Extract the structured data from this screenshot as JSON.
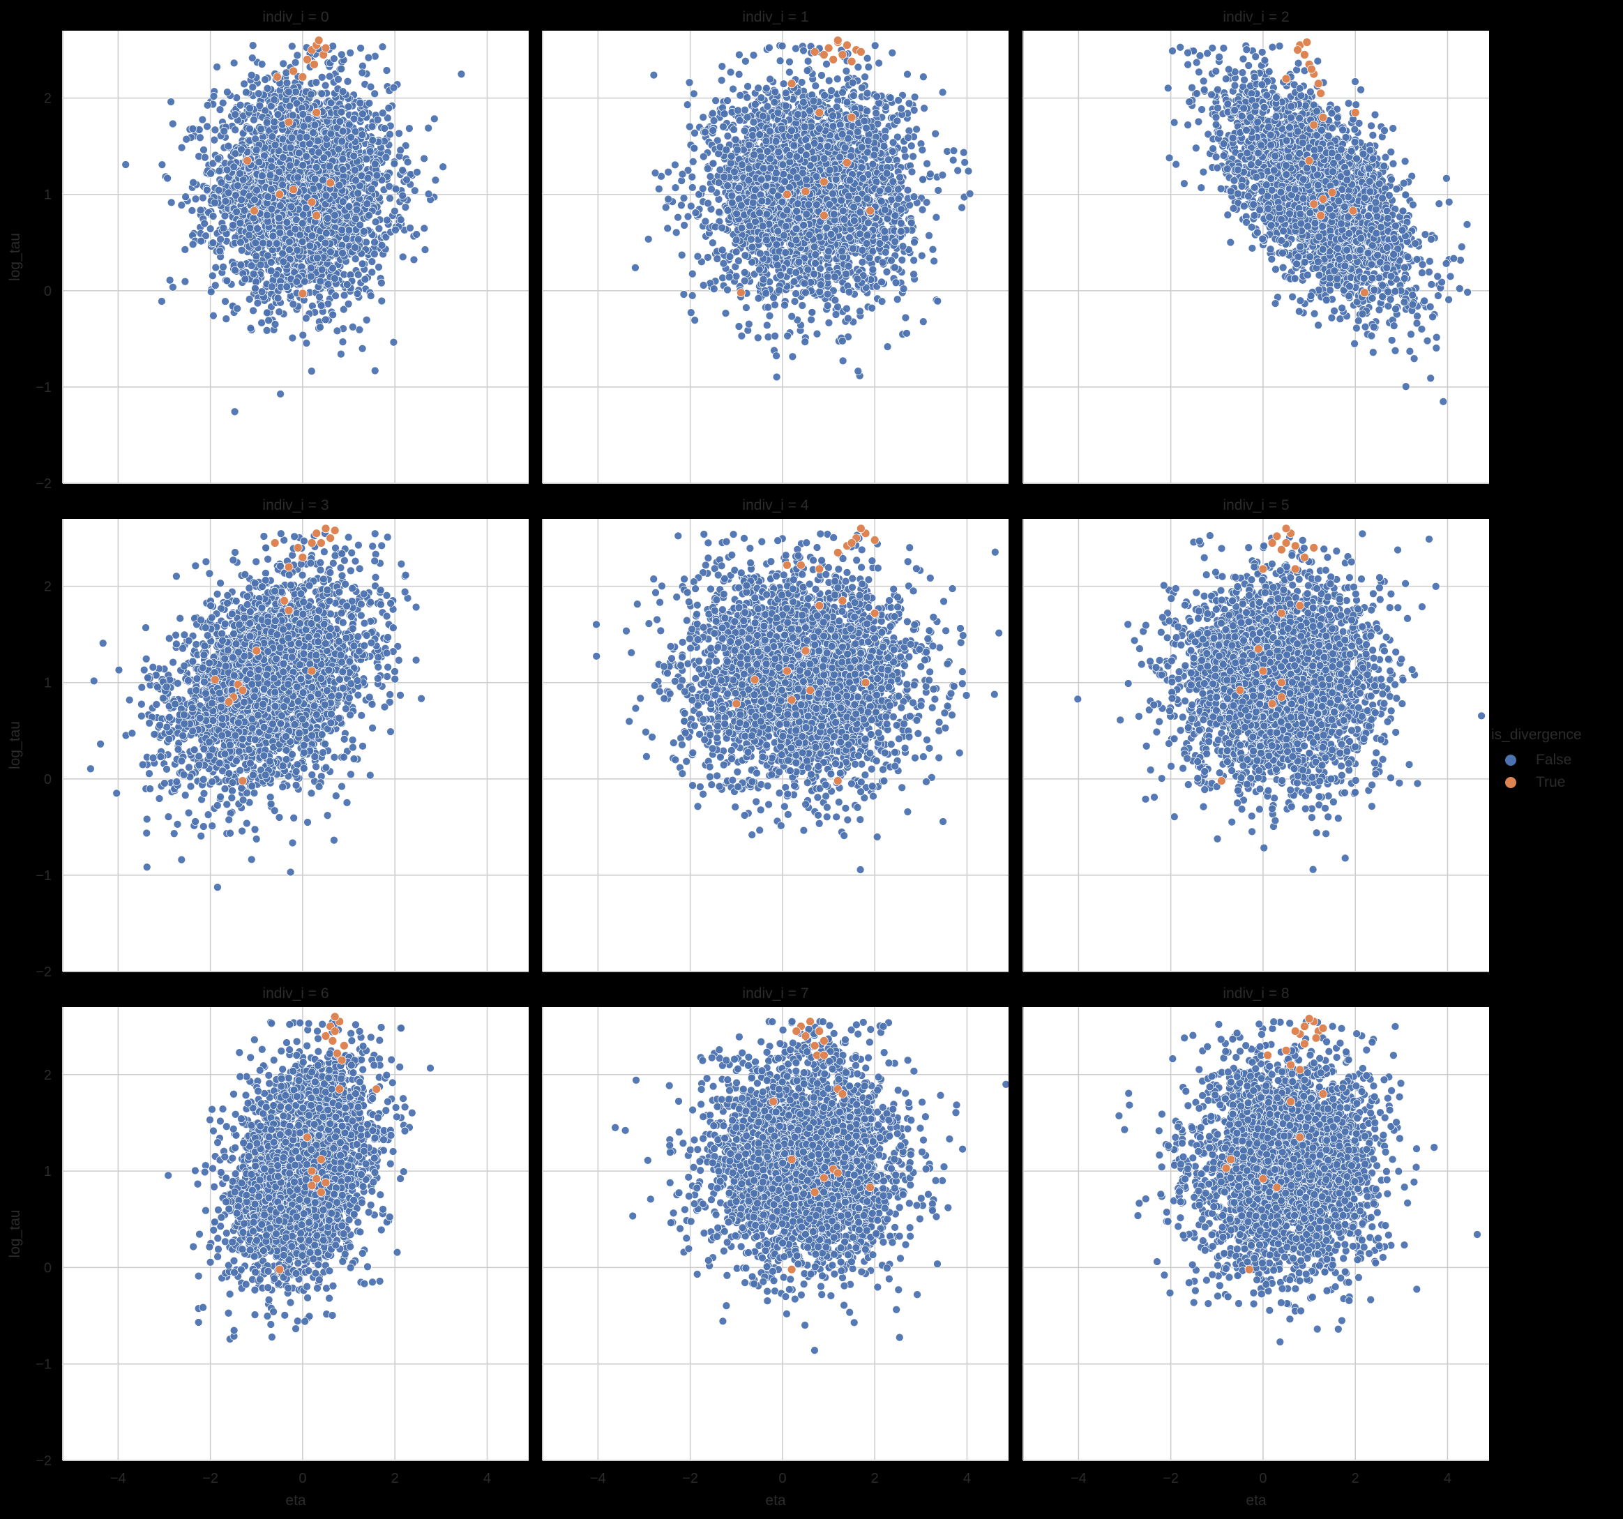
{
  "chart_data": {
    "type": "scatter",
    "facet_variable": "indiv_i",
    "panels": [
      {
        "title": "indiv_i = 0",
        "center": [
          0.0,
          1.05
        ],
        "spread": [
          0.95,
          0.55
        ],
        "corr": 0.0,
        "divergent": [
          [
            0.2,
            2.5
          ],
          [
            0.3,
            2.55
          ],
          [
            0.45,
            2.45
          ],
          [
            0.1,
            2.4
          ],
          [
            0.35,
            2.6
          ],
          [
            0.5,
            2.52
          ],
          [
            0.25,
            2.35
          ],
          [
            -0.55,
            2.22
          ],
          [
            -0.2,
            2.28
          ],
          [
            0.0,
            2.22
          ],
          [
            0.3,
            1.85
          ],
          [
            -0.3,
            1.75
          ],
          [
            -1.2,
            1.35
          ],
          [
            -0.2,
            1.05
          ],
          [
            -0.5,
            1.0
          ],
          [
            0.6,
            1.12
          ],
          [
            0.2,
            0.92
          ],
          [
            -1.05,
            0.83
          ],
          [
            0.3,
            0.78
          ],
          [
            0.0,
            -0.03
          ]
        ]
      },
      {
        "title": "indiv_i = 1",
        "center": [
          0.6,
          1.05
        ],
        "spread": [
          1.05,
          0.55
        ],
        "corr": 0.0,
        "divergent": [
          [
            1.0,
            2.52
          ],
          [
            1.2,
            2.58
          ],
          [
            1.4,
            2.55
          ],
          [
            1.6,
            2.5
          ],
          [
            0.9,
            2.45
          ],
          [
            1.3,
            2.45
          ],
          [
            1.1,
            2.4
          ],
          [
            1.5,
            2.38
          ],
          [
            1.7,
            2.48
          ],
          [
            0.7,
            2.48
          ],
          [
            1.2,
            2.6
          ],
          [
            0.2,
            2.15
          ],
          [
            0.8,
            1.85
          ],
          [
            1.5,
            1.8
          ],
          [
            1.4,
            1.33
          ],
          [
            0.9,
            1.13
          ],
          [
            0.5,
            1.03
          ],
          [
            0.1,
            1.0
          ],
          [
            1.9,
            0.83
          ],
          [
            0.9,
            0.78
          ],
          [
            -0.9,
            -0.02
          ]
        ]
      },
      {
        "title": "indiv_i = 2",
        "center": [
          1.2,
          1.0
        ],
        "spread": [
          1.0,
          0.55
        ],
        "corr": -0.6,
        "divergent": [
          [
            0.8,
            2.55
          ],
          [
            0.9,
            2.45
          ],
          [
            1.0,
            2.35
          ],
          [
            1.1,
            2.25
          ],
          [
            1.2,
            2.15
          ],
          [
            0.75,
            2.5
          ],
          [
            0.95,
            2.58
          ],
          [
            1.05,
            2.3
          ],
          [
            1.25,
            2.05
          ],
          [
            0.5,
            2.2
          ],
          [
            1.3,
            1.8
          ],
          [
            2.0,
            1.85
          ],
          [
            1.1,
            1.72
          ],
          [
            1.0,
            1.35
          ],
          [
            1.5,
            1.02
          ],
          [
            1.3,
            0.95
          ],
          [
            1.1,
            0.9
          ],
          [
            1.95,
            0.83
          ],
          [
            1.25,
            0.78
          ],
          [
            2.2,
            -0.02
          ]
        ]
      },
      {
        "title": "indiv_i = 3",
        "center": [
          -0.7,
          1.0
        ],
        "spread": [
          1.05,
          0.55
        ],
        "corr": 0.35,
        "divergent": [
          [
            0.3,
            2.55
          ],
          [
            0.6,
            2.5
          ],
          [
            0.5,
            2.6
          ],
          [
            0.2,
            2.45
          ],
          [
            -0.1,
            2.4
          ],
          [
            0.0,
            2.3
          ],
          [
            -0.3,
            2.2
          ],
          [
            0.4,
            2.45
          ],
          [
            0.7,
            2.58
          ],
          [
            -0.6,
            2.45
          ],
          [
            -0.4,
            1.85
          ],
          [
            -0.3,
            1.75
          ],
          [
            -1.0,
            1.33
          ],
          [
            0.2,
            1.12
          ],
          [
            -1.9,
            1.03
          ],
          [
            -1.4,
            0.98
          ],
          [
            -1.3,
            0.92
          ],
          [
            -1.5,
            0.85
          ],
          [
            -1.6,
            0.8
          ],
          [
            -1.3,
            -0.02
          ]
        ]
      },
      {
        "title": "indiv_i = 4",
        "center": [
          0.4,
          1.05
        ],
        "spread": [
          1.25,
          0.55
        ],
        "corr": 0.0,
        "divergent": [
          [
            1.6,
            2.5
          ],
          [
            1.8,
            2.55
          ],
          [
            2.0,
            2.48
          ],
          [
            1.4,
            2.42
          ],
          [
            1.7,
            2.6
          ],
          [
            1.2,
            2.35
          ],
          [
            1.5,
            2.45
          ],
          [
            0.4,
            2.22
          ],
          [
            0.8,
            2.18
          ],
          [
            0.1,
            2.22
          ],
          [
            0.8,
            1.8
          ],
          [
            1.3,
            1.85
          ],
          [
            2.0,
            1.72
          ],
          [
            0.5,
            1.33
          ],
          [
            0.1,
            1.12
          ],
          [
            0.6,
            0.92
          ],
          [
            1.8,
            1.0
          ],
          [
            -0.6,
            1.03
          ],
          [
            -1.0,
            0.78
          ],
          [
            0.2,
            0.82
          ],
          [
            1.2,
            -0.02
          ]
        ]
      },
      {
        "title": "indiv_i = 5",
        "center": [
          0.3,
          1.0
        ],
        "spread": [
          1.05,
          0.55
        ],
        "corr": 0.0,
        "divergent": [
          [
            0.3,
            2.52
          ],
          [
            0.5,
            2.45
          ],
          [
            0.6,
            2.55
          ],
          [
            0.4,
            2.38
          ],
          [
            0.7,
            2.42
          ],
          [
            0.2,
            2.45
          ],
          [
            0.9,
            2.3
          ],
          [
            0.5,
            2.6
          ],
          [
            1.1,
            2.4
          ],
          [
            0.0,
            2.18
          ],
          [
            0.7,
            2.18
          ],
          [
            0.8,
            1.8
          ],
          [
            0.4,
            1.72
          ],
          [
            -0.1,
            1.35
          ],
          [
            0.0,
            1.12
          ],
          [
            0.4,
            1.0
          ],
          [
            0.4,
            0.85
          ],
          [
            -0.5,
            0.92
          ],
          [
            0.2,
            0.78
          ],
          [
            -0.9,
            -0.02
          ]
        ]
      },
      {
        "title": "indiv_i = 6",
        "center": [
          0.0,
          1.0
        ],
        "spread": [
          0.75,
          0.55
        ],
        "corr": 0.3,
        "divergent": [
          [
            0.6,
            2.5
          ],
          [
            0.7,
            2.45
          ],
          [
            0.8,
            2.55
          ],
          [
            0.65,
            2.35
          ],
          [
            0.75,
            2.22
          ],
          [
            0.85,
            2.15
          ],
          [
            0.5,
            2.4
          ],
          [
            0.9,
            2.3
          ],
          [
            0.7,
            2.6
          ],
          [
            0.8,
            1.85
          ],
          [
            1.6,
            1.85
          ],
          [
            0.4,
            1.12
          ],
          [
            0.1,
            1.35
          ],
          [
            0.2,
            1.0
          ],
          [
            0.3,
            0.92
          ],
          [
            0.5,
            0.88
          ],
          [
            0.4,
            0.78
          ],
          [
            0.2,
            0.85
          ],
          [
            -0.5,
            -0.02
          ]
        ]
      },
      {
        "title": "indiv_i = 7",
        "center": [
          0.5,
          1.05
        ],
        "spread": [
          1.0,
          0.55
        ],
        "corr": 0.0,
        "divergent": [
          [
            0.4,
            2.5
          ],
          [
            0.6,
            2.55
          ],
          [
            0.8,
            2.45
          ],
          [
            0.5,
            2.4
          ],
          [
            0.9,
            2.35
          ],
          [
            0.7,
            2.3
          ],
          [
            0.3,
            2.45
          ],
          [
            0.75,
            2.2
          ],
          [
            0.9,
            2.2
          ],
          [
            1.2,
            1.85
          ],
          [
            1.3,
            1.8
          ],
          [
            -0.2,
            1.72
          ],
          [
            0.2,
            1.12
          ],
          [
            1.1,
            1.02
          ],
          [
            1.2,
            0.98
          ],
          [
            0.9,
            0.93
          ],
          [
            0.7,
            0.78
          ],
          [
            1.9,
            0.83
          ],
          [
            0.2,
            -0.02
          ]
        ]
      },
      {
        "title": "indiv_i = 8",
        "center": [
          0.5,
          1.05
        ],
        "spread": [
          1.0,
          0.55
        ],
        "corr": 0.0,
        "divergent": [
          [
            0.9,
            2.5
          ],
          [
            1.1,
            2.55
          ],
          [
            1.2,
            2.45
          ],
          [
            0.8,
            2.42
          ],
          [
            1.3,
            2.48
          ],
          [
            1.0,
            2.58
          ],
          [
            1.15,
            2.38
          ],
          [
            0.9,
            2.32
          ],
          [
            0.7,
            2.45
          ],
          [
            0.1,
            2.2
          ],
          [
            0.5,
            2.25
          ],
          [
            0.6,
            2.1
          ],
          [
            0.8,
            2.05
          ],
          [
            1.3,
            1.8
          ],
          [
            0.6,
            1.72
          ],
          [
            0.8,
            1.35
          ],
          [
            -0.8,
            1.03
          ],
          [
            -0.7,
            1.12
          ],
          [
            0.0,
            0.92
          ],
          [
            0.3,
            0.83
          ],
          [
            -0.3,
            -0.02
          ]
        ]
      }
    ],
    "xlabel": "eta",
    "ylabel": "log_tau",
    "xlim": [
      -5.2,
      4.9
    ],
    "ylim": [
      -2,
      2.7
    ],
    "xticks": [
      -4,
      -2,
      0,
      2,
      4
    ],
    "yticks": [
      -2,
      -1,
      0,
      1,
      2
    ],
    "xtick_labels": [
      "−4",
      "−2",
      "0",
      "2",
      "4"
    ],
    "ytick_labels": [
      "−2",
      "−1",
      "0",
      "1",
      "2"
    ],
    "grid": true,
    "legend": {
      "title": "is_divergence",
      "placement": "right",
      "entries": [
        {
          "label": "False",
          "color": "#4c72b0"
        },
        {
          "label": "True",
          "color": "#dd8452"
        }
      ]
    },
    "point_counts": {
      "non_divergent_drawn_per_panel": 3200
    }
  },
  "colors": {
    "false_color": "#4c72b0",
    "true_color": "#dd8452",
    "background": "#000000",
    "panel_bg": "#ffffff",
    "grid": "#cccccc"
  }
}
